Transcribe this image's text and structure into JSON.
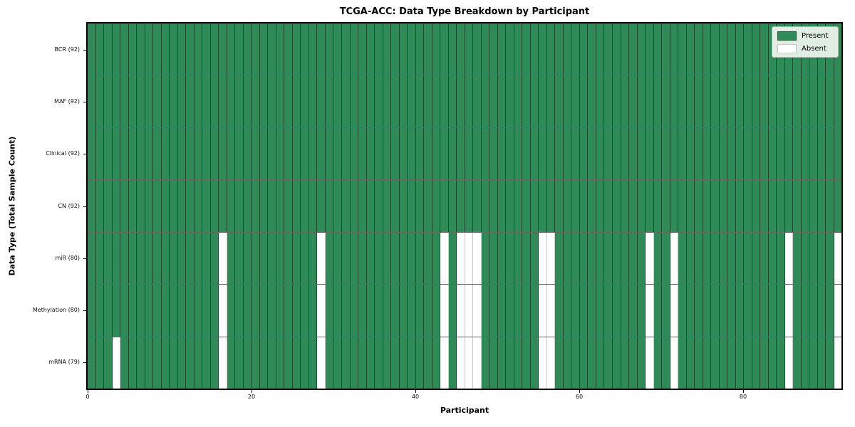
{
  "figure": {
    "title": "TCGA-ACC: Data Type Breakdown by Participant",
    "xlabel": "Participant",
    "ylabel": "Data Type (Total Sample Count)"
  },
  "colors": {
    "present": "#2e8b57",
    "absent": "#ffffff",
    "present_edge": "rgba(0,0,0,0.45)",
    "absent_edge": "#c9c9c9",
    "row_separator": "rgba(0,0,0,0.60)",
    "frame": "#000000"
  },
  "chart_data": {
    "type": "heatmap",
    "title": "TCGA-ACC: Data Type Breakdown by Participant",
    "xlabel": "Participant",
    "ylabel": "Data Type (Total Sample Count)",
    "x_range": [
      0,
      92
    ],
    "x_ticks": [
      0,
      20,
      40,
      60,
      80
    ],
    "n_participants": 92,
    "grid": "cell-borders",
    "legend_position": "upper-right-inside",
    "legend": [
      {
        "label": "Present",
        "color": "#2e8b57"
      },
      {
        "label": "Absent",
        "color": "#ffffff"
      }
    ],
    "rows": [
      {
        "label": "BCR (92)",
        "data_type": "BCR",
        "present_count": 92,
        "absent_participants": []
      },
      {
        "label": "MAF (92)",
        "data_type": "MAF",
        "present_count": 92,
        "absent_participants": []
      },
      {
        "label": "Clinical (92)",
        "data_type": "Clinical",
        "present_count": 92,
        "absent_participants": []
      },
      {
        "label": "CN (92)",
        "data_type": "CN",
        "present_count": 92,
        "absent_participants": []
      },
      {
        "label": "miR (80)",
        "data_type": "miR",
        "present_count": 80,
        "absent_participants": [
          16,
          28,
          43,
          45,
          46,
          47,
          55,
          56,
          68,
          71,
          85,
          91
        ]
      },
      {
        "label": "Methylation (80)",
        "data_type": "Methylation",
        "present_count": 80,
        "absent_participants": [
          16,
          28,
          43,
          45,
          46,
          47,
          55,
          56,
          68,
          71,
          85,
          91
        ]
      },
      {
        "label": "mRNA (79)",
        "data_type": "mRNA",
        "present_count": 79,
        "absent_participants": [
          3,
          16,
          28,
          43,
          45,
          46,
          47,
          55,
          56,
          68,
          71,
          85,
          91
        ]
      }
    ]
  }
}
